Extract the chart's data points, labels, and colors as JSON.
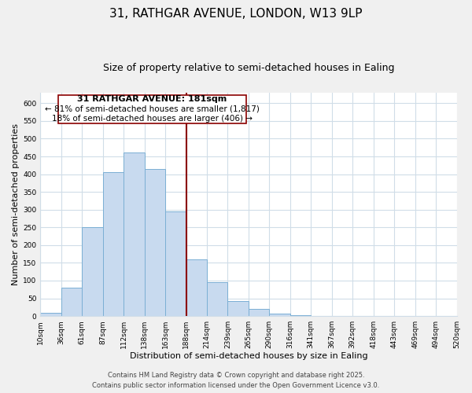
{
  "title": "31, RATHGAR AVENUE, LONDON, W13 9LP",
  "subtitle": "Size of property relative to semi-detached houses in Ealing",
  "xlabel": "Distribution of semi-detached houses by size in Ealing",
  "ylabel": "Number of semi-detached properties",
  "bin_labels": [
    "10sqm",
    "36sqm",
    "61sqm",
    "87sqm",
    "112sqm",
    "138sqm",
    "163sqm",
    "188sqm",
    "214sqm",
    "239sqm",
    "265sqm",
    "290sqm",
    "316sqm",
    "341sqm",
    "367sqm",
    "392sqm",
    "418sqm",
    "443sqm",
    "469sqm",
    "494sqm",
    "520sqm"
  ],
  "bar_heights": [
    8,
    80,
    250,
    405,
    460,
    415,
    295,
    160,
    95,
    42,
    20,
    6,
    3,
    1,
    1,
    0,
    0,
    0,
    0,
    0
  ],
  "bar_color": "#c8daef",
  "bar_edge_color": "#7bafd4",
  "marker_color": "#8b0000",
  "ylim": [
    0,
    630
  ],
  "yticks": [
    0,
    50,
    100,
    150,
    200,
    250,
    300,
    350,
    400,
    450,
    500,
    550,
    600
  ],
  "annotation_title": "31 RATHGAR AVENUE: 181sqm",
  "annotation_line1": "← 81% of semi-detached houses are smaller (1,817)",
  "annotation_line2": "18% of semi-detached houses are larger (406) →",
  "footer_line1": "Contains HM Land Registry data © Crown copyright and database right 2025.",
  "footer_line2": "Contains public sector information licensed under the Open Government Licence v3.0.",
  "plot_bg_color": "#ffffff",
  "fig_bg_color": "#f0f0f0",
  "grid_color": "#d0dde8",
  "title_fontsize": 11,
  "subtitle_fontsize": 9,
  "axis_label_fontsize": 8,
  "tick_fontsize": 6.5,
  "footer_fontsize": 6,
  "ann_fontsize": 7.5,
  "ann_title_fontsize": 8
}
